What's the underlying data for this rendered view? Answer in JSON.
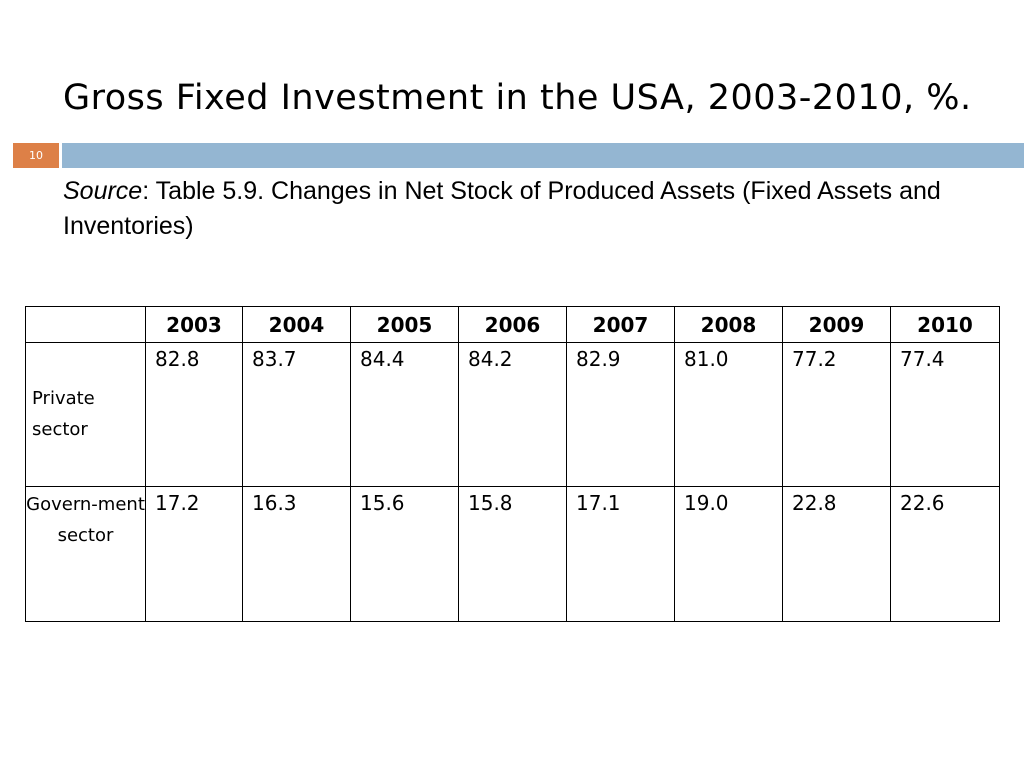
{
  "slide": {
    "number": "10",
    "accent_color": "#dd8047",
    "band_color": "#94b6d2"
  },
  "title": "Gross Fixed Investment in the USA, 2003-2010, %.",
  "source": {
    "label": "Source",
    "text": ": Table 5.9. Changes in Net Stock of Produced Assets (Fixed Assets and Inventories)"
  },
  "table": {
    "corner": "",
    "years": [
      "2003",
      "2004",
      "2005",
      "2006",
      "2007",
      "2008",
      "2009",
      "2010"
    ],
    "rows": [
      {
        "label": "Private sector",
        "values": [
          "82.8",
          "83.7",
          "84.4",
          "84.2",
          "82.9",
          "81.0",
          "77.2",
          "77.4"
        ]
      },
      {
        "label": "Govern-ment sector",
        "values": [
          "17.2",
          "16.3",
          "15.6",
          "15.8",
          "17.1",
          "19.0",
          "22.8",
          "22.6"
        ]
      }
    ]
  }
}
